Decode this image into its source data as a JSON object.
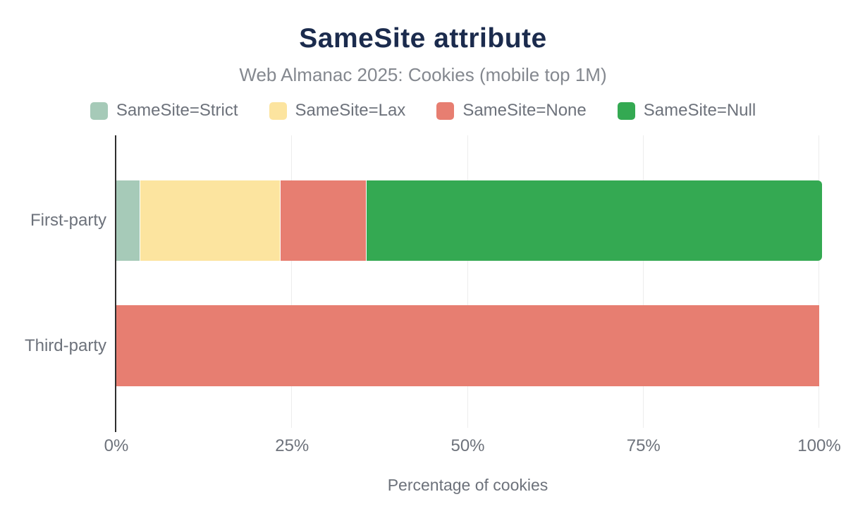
{
  "chart_data": {
    "type": "bar",
    "orientation": "horizontal",
    "stacked": true,
    "title": "SameSite attribute",
    "subtitle": "Web Almanac 2025: Cookies (mobile top 1M)",
    "xlabel": "Percentage of cookies",
    "ylabel": "",
    "categories": [
      "First-party",
      "Third-party"
    ],
    "series": [
      {
        "name": "SameSite=Strict",
        "color": "#a6cab8",
        "rounded_end": false,
        "values": [
          3.3,
          0
        ]
      },
      {
        "name": "SameSite=Lax",
        "color": "#fce49f",
        "rounded_end": false,
        "values": [
          19.8,
          0
        ]
      },
      {
        "name": "SameSite=None",
        "color": "#e77e71",
        "rounded_end": false,
        "values": [
          12.1,
          100
        ]
      },
      {
        "name": "SameSite=Null",
        "color": "#34a952",
        "rounded_end": true,
        "values": [
          64.8,
          0
        ]
      }
    ],
    "xlim": [
      0,
      100
    ],
    "x_ticks": [
      {
        "label": "0%",
        "value": 0
      },
      {
        "label": "25%",
        "value": 25
      },
      {
        "label": "50%",
        "value": 50
      },
      {
        "label": "75%",
        "value": 75
      },
      {
        "label": "100%",
        "value": 100
      }
    ],
    "grid": "vertical",
    "legend_position": "top",
    "colors": {
      "title": "#1b2b4d",
      "subtitle": "#84888f",
      "label_text": "#6d727b",
      "gridline": "#ededed",
      "axis_line": "#2e2e2e",
      "background": "#ffffff"
    }
  }
}
